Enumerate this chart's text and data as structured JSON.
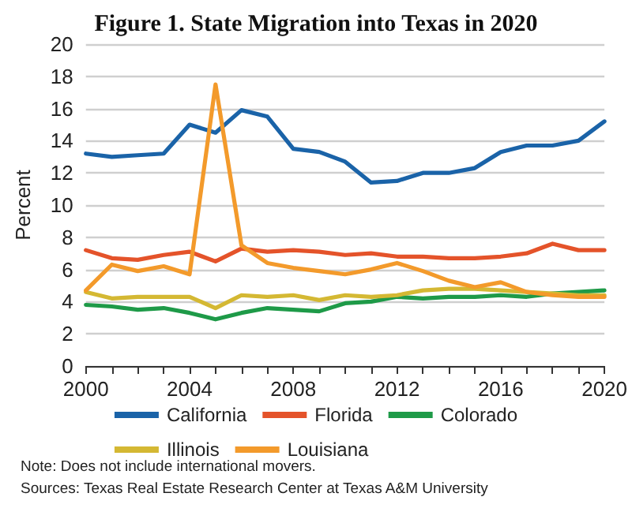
{
  "chart_data": {
    "type": "line",
    "title": "Figure 1. State Migration into Texas in 2020",
    "ylabel": "Percent",
    "x": [
      2000,
      2001,
      2002,
      2003,
      2004,
      2005,
      2006,
      2007,
      2008,
      2009,
      2010,
      2011,
      2012,
      2013,
      2014,
      2015,
      2016,
      2017,
      2018,
      2019,
      2020
    ],
    "series": [
      {
        "name": "California",
        "color": "#1a63a8",
        "values": [
          13.2,
          13.0,
          13.1,
          13.2,
          15.0,
          14.5,
          15.9,
          15.5,
          13.5,
          13.3,
          12.7,
          11.4,
          11.5,
          12.0,
          12.0,
          12.3,
          13.3,
          13.7,
          13.7,
          14.0,
          15.2
        ]
      },
      {
        "name": "Florida",
        "color": "#e4532a",
        "values": [
          7.2,
          6.7,
          6.6,
          6.9,
          7.1,
          6.5,
          7.3,
          7.1,
          7.2,
          7.1,
          6.9,
          7.0,
          6.8,
          6.8,
          6.7,
          6.7,
          6.8,
          7.0,
          7.6,
          7.2,
          7.2
        ]
      },
      {
        "name": "Colorado",
        "color": "#1e9a48",
        "values": [
          3.8,
          3.7,
          3.5,
          3.6,
          3.3,
          2.9,
          3.3,
          3.6,
          3.5,
          3.4,
          3.9,
          4.0,
          4.3,
          4.2,
          4.3,
          4.3,
          4.4,
          4.3,
          4.5,
          4.6,
          4.7
        ]
      },
      {
        "name": "Illinois",
        "color": "#d4b833",
        "values": [
          4.6,
          4.2,
          4.3,
          4.3,
          4.3,
          3.6,
          4.4,
          4.3,
          4.4,
          4.1,
          4.4,
          4.3,
          4.4,
          4.7,
          4.8,
          4.8,
          4.7,
          4.6,
          4.5,
          4.4,
          4.4
        ]
      },
      {
        "name": "Louisiana",
        "color": "#f39a2b",
        "values": [
          4.7,
          6.3,
          5.9,
          6.2,
          5.7,
          17.5,
          7.5,
          6.4,
          6.1,
          5.9,
          5.7,
          6.0,
          6.4,
          5.9,
          5.3,
          4.9,
          5.2,
          4.6,
          4.4,
          4.3,
          4.3
        ]
      }
    ],
    "xlim": [
      2000,
      2020
    ],
    "xticks": [
      2000,
      {
        "value": 2001,
        "label": null
      },
      {
        "value": 2002,
        "label": null
      },
      {
        "value": 2003,
        "label": null
      },
      2004,
      {
        "value": 2005,
        "label": null
      },
      {
        "value": 2006,
        "label": null
      },
      {
        "value": 2007,
        "label": null
      },
      2008,
      {
        "value": 2009,
        "label": null
      },
      {
        "value": 2010,
        "label": null
      },
      {
        "value": 2011,
        "label": null
      },
      2012,
      {
        "value": 2013,
        "label": null
      },
      {
        "value": 2014,
        "label": null
      },
      {
        "value": 2015,
        "label": null
      },
      2016,
      {
        "value": 2017,
        "label": null
      },
      {
        "value": 2018,
        "label": null
      },
      {
        "value": 2019,
        "label": null
      },
      2020
    ],
    "ylim": [
      0,
      20
    ],
    "yticks": [
      0,
      2,
      4,
      6,
      8,
      10,
      12,
      14,
      16,
      18,
      20
    ],
    "grid": "y",
    "legend": "bottom",
    "marker": "none",
    "line_style": "solid",
    "annotations": [
      "Note: Does not include international movers.",
      "Sources: Texas Real Estate Research Center at Texas A&M University"
    ]
  }
}
